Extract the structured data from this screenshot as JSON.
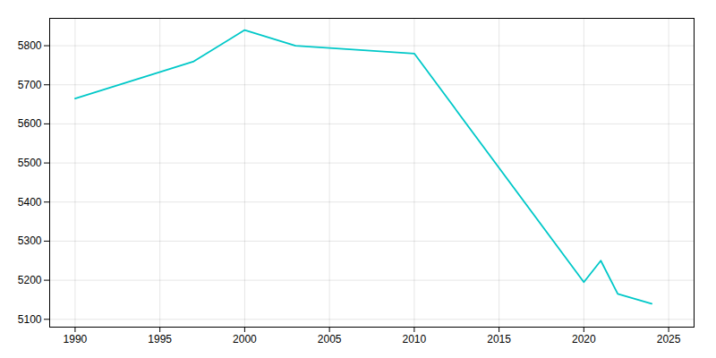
{
  "chart_data": {
    "type": "line",
    "x": [
      1990,
      1997,
      2000,
      2003,
      2010,
      2020,
      2021,
      2022,
      2024
    ],
    "values": [
      5665,
      5760,
      5840,
      5800,
      5780,
      5195,
      5250,
      5165,
      5140
    ],
    "color": "#00c8c8",
    "xlim": [
      1988.5,
      2026.5
    ],
    "ylim": [
      5080,
      5870
    ],
    "xticks": [
      1990,
      1995,
      2000,
      2005,
      2010,
      2015,
      2020,
      2025
    ],
    "yticks": [
      5100,
      5200,
      5300,
      5400,
      5500,
      5600,
      5700,
      5800
    ],
    "grid": true
  }
}
